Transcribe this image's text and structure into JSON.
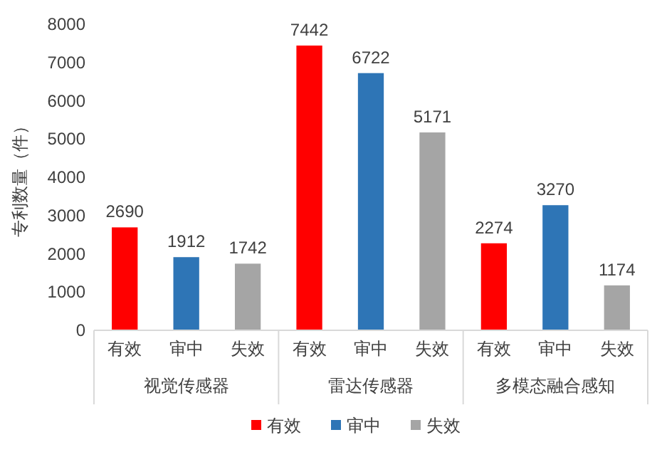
{
  "chart_data": {
    "type": "bar",
    "ylabel": "专利数量（件）",
    "categories": [
      "有效",
      "审中",
      "失效",
      "有效",
      "审中",
      "失效",
      "有效",
      "审中",
      "失效"
    ],
    "series": [
      {
        "name": "有效",
        "color": "#ff0000",
        "values": [
          2690,
          null,
          null,
          7442,
          null,
          null,
          2274,
          null,
          null
        ]
      },
      {
        "name": "审中",
        "color": "#2e75b6",
        "values": [
          null,
          1912,
          null,
          null,
          6722,
          null,
          null,
          3270,
          null
        ]
      },
      {
        "name": "失效",
        "color": "#a5a5a5",
        "values": [
          null,
          null,
          1742,
          null,
          null,
          5171,
          null,
          null,
          1174
        ]
      }
    ],
    "annotations": [
      "视觉传感器",
      "雷达传感器",
      "多模态融合感知"
    ],
    "ylim": [
      0,
      8000
    ],
    "yticks": [
      0,
      1000,
      2000,
      3000,
      4000,
      5000,
      6000,
      7000,
      8000
    ],
    "data_labels": true,
    "legend": "bottom",
    "grid": false
  }
}
